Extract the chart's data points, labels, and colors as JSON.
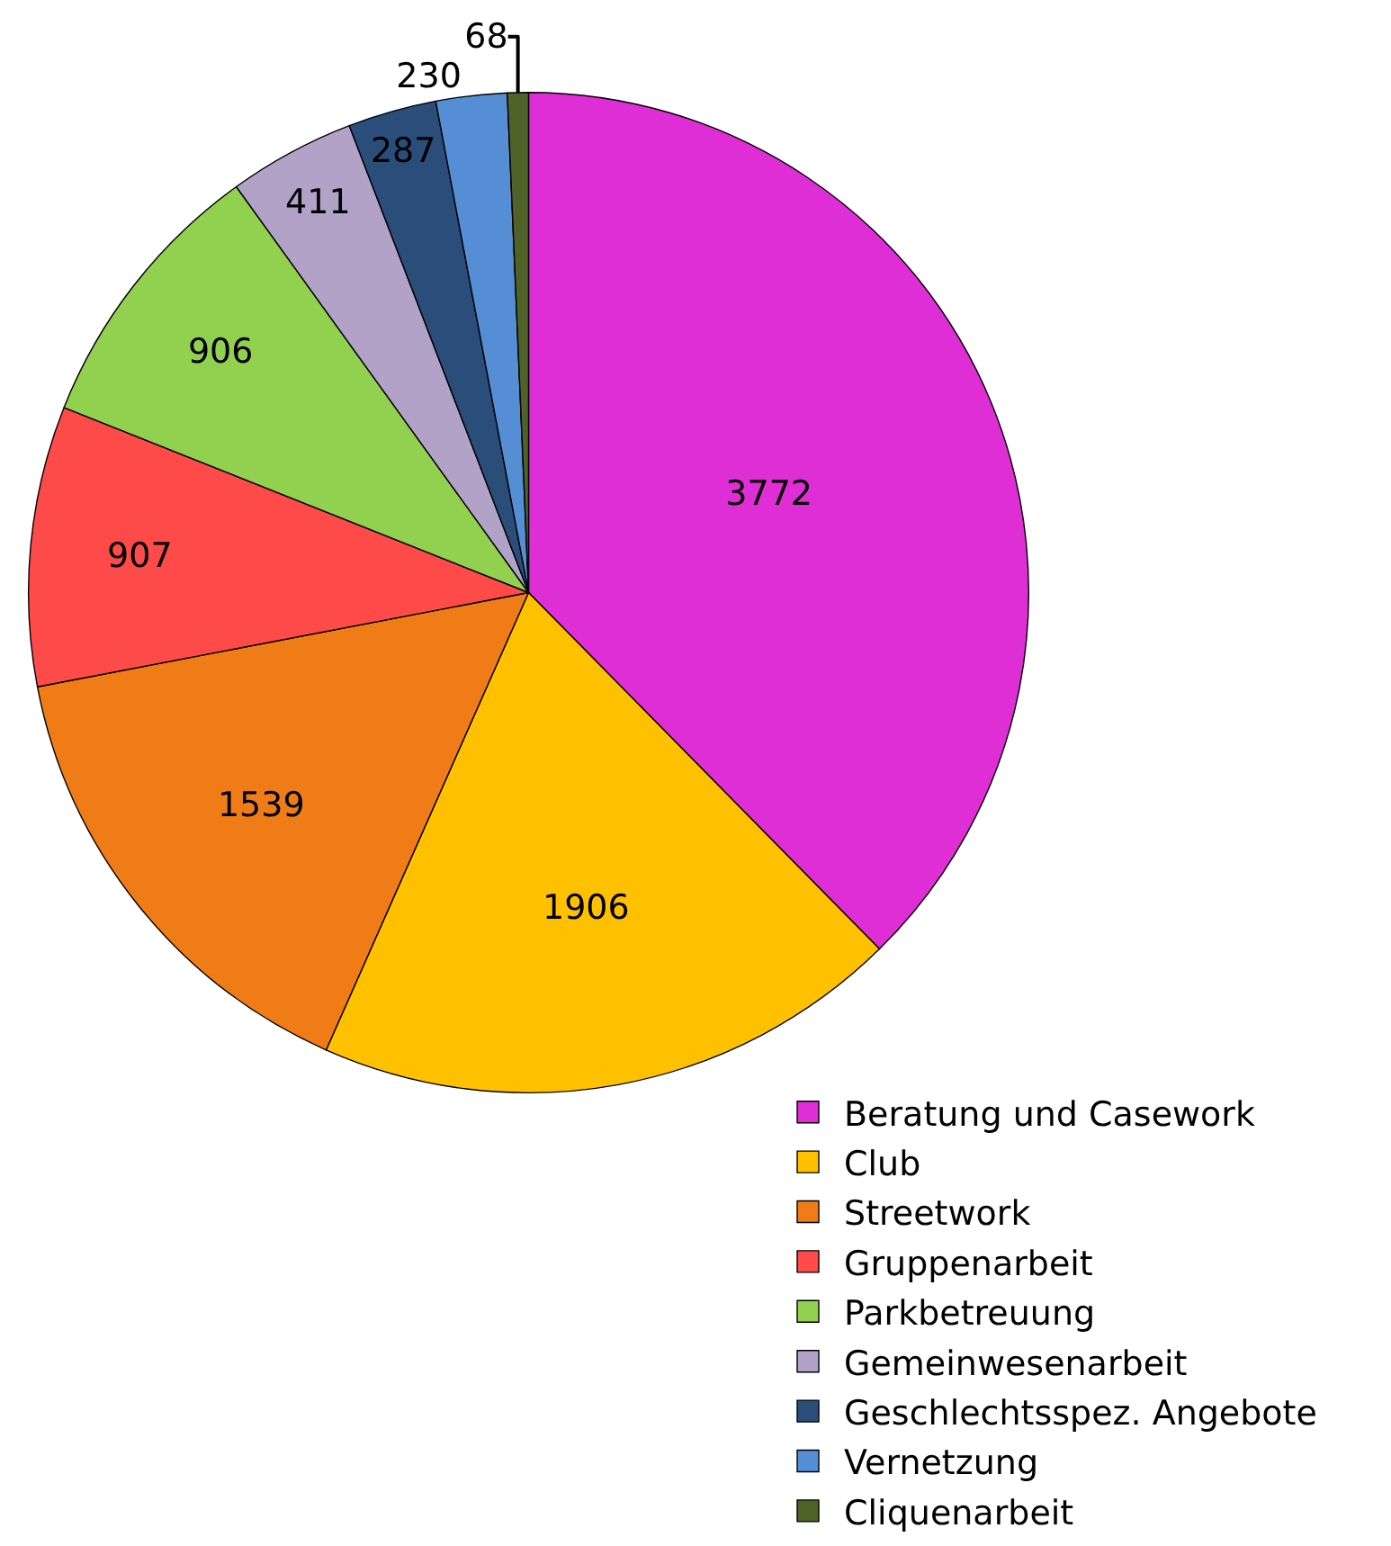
{
  "chart_data": {
    "type": "pie",
    "categories": [
      "Beratung und Casework",
      "Club",
      "Streetwork",
      "Gruppenarbeit",
      "Parkbetreuung",
      "Gemeinwesenarbeit",
      "Geschlechtsspez. Angebote",
      "Vernetzung",
      "Cliquenarbeit"
    ],
    "values": [
      3772,
      1906,
      1539,
      907,
      906,
      411,
      287,
      230,
      68
    ],
    "colors": [
      "#e02ed6",
      "#ffc000",
      "#f07c17",
      "#fe4a49",
      "#92d050",
      "#b3a2c7",
      "#2a4d7a",
      "#558ed5",
      "#4f6228"
    ],
    "data_labels": true,
    "legend": "bottom right"
  }
}
